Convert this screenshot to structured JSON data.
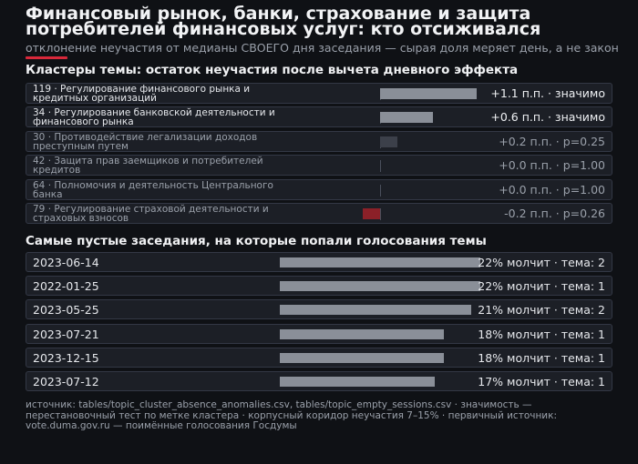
{
  "title": "Финансовый рынок, банки, страхование и защита потребителей финансовых услуг: кто отсиживался",
  "subtitle": "отклонение неучастия от медианы СВОЕГО дня заседания — сырая доля меряет день, а не закон",
  "colors": {
    "accent": "#d8283a",
    "positive_significant": "#8a8f98",
    "positive_weak": "#3c404a",
    "negative": "#8b2028",
    "session_bar": "#8a8f98"
  },
  "chart_data": [
    {
      "type": "bar",
      "orientation": "horizontal",
      "title": "Кластеры темы: остаток неучастия после вычета дневного эффекта",
      "categories": [
        "119 · Регулирование финансового рынка и кредитных организаций",
        "34 · Регулирование банковской деятельности и финансового рынка",
        "30 · Противодействие легализации доходов преступным путем",
        "42 · Защита прав заемщиков и потребителей кредитов",
        "64 · Полномочия и деятельность Центрального банка",
        "79 · Регулирование страховой деятельности и страховых взносов"
      ],
      "values": [
        1.1,
        0.6,
        0.2,
        0.0,
        0.0,
        -0.2
      ],
      "significant": [
        true,
        true,
        false,
        false,
        false,
        false
      ],
      "value_labels": [
        "+1.1 п.п. · значимо",
        "+0.6 п.п. · значимо",
        "+0.2 п.п. · p=0.25",
        "+0.0 п.п. · p=1.00",
        "+0.0 п.п. · p=1.00",
        "-0.2 п.п. · p=0.26"
      ],
      "xlim": [
        -0.15,
        1.1
      ]
    },
    {
      "type": "bar",
      "orientation": "horizontal",
      "title": "Самые пустые заседания, на которые попали голосования темы",
      "categories": [
        "2023-06-14",
        "2022-01-25",
        "2023-05-25",
        "2023-07-21",
        "2023-12-15",
        "2023-07-12"
      ],
      "values": [
        22,
        22,
        21,
        18,
        18,
        17
      ],
      "value_labels": [
        "22% молчит · тема: 2",
        "22% молчит · тема: 1",
        "21% молчит · тема: 2",
        "18% молчит · тема: 1",
        "18% молчит · тема: 1",
        "17% молчит · тема: 1"
      ]
    }
  ],
  "footer": "источник: tables/topic_cluster_absence_anomalies.csv, tables/topic_empty_sessions.csv · значимость — перестановочный тест по метке кластера · корпусный коридор неучастия 7–15% · первичный источник: vote.duma.gov.ru — поимённые голосования Госдумы"
}
